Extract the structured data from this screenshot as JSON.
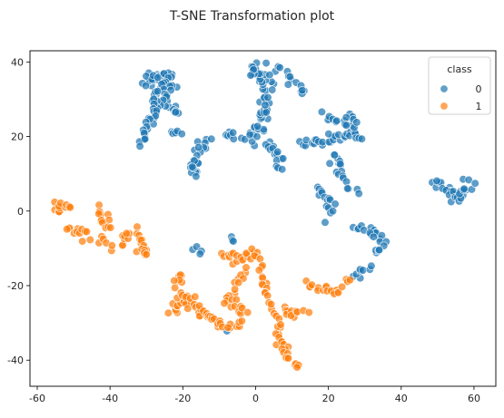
{
  "chart_data": {
    "type": "scatter",
    "title": "T-SNE Transformation plot",
    "xlabel": "",
    "ylabel": "",
    "xlim": [
      -62,
      66
    ],
    "ylim": [
      -47,
      43
    ],
    "x_ticks": [
      -60,
      -40,
      -20,
      0,
      20,
      40,
      60
    ],
    "y_ticks": [
      -40,
      -20,
      0,
      20,
      40
    ],
    "grid": false,
    "legend": {
      "title": "class",
      "placement": "top-right",
      "entries": [
        {
          "label": "0",
          "color": "#1f77b4"
        },
        {
          "label": "1",
          "color": "#ff7f0e"
        }
      ]
    },
    "series": [
      {
        "name": "0",
        "color": "#1f77b4",
        "clusters": [
          {
            "path": [
              [
                -30,
                34
              ],
              [
                -28,
                36
              ],
              [
                -25,
                36
              ],
              [
                -24,
                33
              ],
              [
                -25,
                30
              ],
              [
                -27,
                29
              ]
            ],
            "n": 60,
            "spread": 1.6
          },
          {
            "path": [
              [
                -27,
                28
              ],
              [
                -28,
                25
              ],
              [
                -30,
                22
              ],
              [
                -30,
                18
              ]
            ],
            "n": 22,
            "spread": 1.1
          },
          {
            "path": [
              [
                -22,
                28
              ],
              [
                -22,
                26
              ]
            ],
            "n": 6,
            "spread": 0.8
          },
          {
            "path": [
              [
                -23,
                21
              ],
              [
                -21,
                21
              ]
            ],
            "n": 6,
            "spread": 0.6
          },
          {
            "path": [
              [
                -14,
                19
              ],
              [
                -15,
                16
              ],
              [
                -17,
                12
              ],
              [
                -16,
                10
              ]
            ],
            "n": 22,
            "spread": 1.3
          },
          {
            "path": [
              [
                -8,
                21
              ],
              [
                -6,
                20
              ]
            ],
            "n": 6,
            "spread": 0.7
          },
          {
            "path": [
              [
                -2,
                19
              ],
              [
                0,
                21
              ],
              [
                2,
                24
              ],
              [
                3,
                28
              ],
              [
                4,
                32
              ],
              [
                2,
                35
              ],
              [
                0,
                38
              ],
              [
                -1,
                36
              ]
            ],
            "n": 55,
            "spread": 1.2
          },
          {
            "path": [
              [
                3,
                38
              ],
              [
                7,
                38
              ],
              [
                10,
                35
              ],
              [
                12,
                33
              ],
              [
                13,
                32
              ]
            ],
            "n": 16,
            "spread": 1.0
          },
          {
            "path": [
              [
                3,
                19
              ],
              [
                4,
                16
              ],
              [
                6,
                14
              ],
              [
                7,
                12
              ]
            ],
            "n": 16,
            "spread": 1.0
          },
          {
            "path": [
              [
                12,
                18
              ],
              [
                16,
                18
              ],
              [
                20,
                19
              ],
              [
                23,
                20
              ],
              [
                26,
                21
              ],
              [
                30,
                20
              ]
            ],
            "n": 30,
            "spread": 1.0
          },
          {
            "path": [
              [
                20,
                26
              ],
              [
                23,
                25
              ],
              [
                25,
                24
              ],
              [
                27,
                23
              ]
            ],
            "n": 18,
            "spread": 1.2
          },
          {
            "path": [
              [
                21,
                16
              ],
              [
                22,
                13
              ],
              [
                23,
                11
              ],
              [
                25,
                8
              ],
              [
                27,
                5
              ]
            ],
            "n": 18,
            "spread": 1.1
          },
          {
            "path": [
              [
                17,
                6
              ],
              [
                19,
                4
              ],
              [
                20,
                2
              ],
              [
                21,
                0
              ]
            ],
            "n": 14,
            "spread": 1.0
          },
          {
            "path": [
              [
                28,
                -4
              ],
              [
                29,
                -5
              ]
            ],
            "n": 5,
            "spread": 0.8
          },
          {
            "path": [
              [
                31,
                -5
              ],
              [
                33,
                -7
              ],
              [
                35,
                -9
              ],
              [
                34,
                -11
              ]
            ],
            "n": 16,
            "spread": 1.2
          },
          {
            "path": [
              [
                27,
                -18
              ],
              [
                29,
                -16
              ],
              [
                32,
                -15
              ]
            ],
            "n": 8,
            "spread": 0.9
          },
          {
            "path": [
              [
                49,
                7
              ],
              [
                52,
                6
              ],
              [
                55,
                4
              ],
              [
                57,
                5
              ],
              [
                58,
                8
              ]
            ],
            "n": 30,
            "spread": 1.3
          },
          {
            "path": [
              [
                -17,
                -10
              ],
              [
                -15,
                -11
              ]
            ],
            "n": 4,
            "spread": 0.5
          },
          {
            "path": [
              [
                -7,
                -7
              ],
              [
                -6,
                -8
              ]
            ],
            "n": 3,
            "spread": 0.4
          },
          {
            "path": [
              [
                19,
                -3
              ],
              [
                19,
                -3
              ]
            ],
            "n": 1,
            "spread": 0.2
          },
          {
            "path": [
              [
                -8,
                -32
              ],
              [
                -8,
                -32
              ]
            ],
            "n": 1,
            "spread": 0.2
          }
        ]
      },
      {
        "name": "1",
        "color": "#ff7f0e",
        "clusters": [
          {
            "path": [
              [
                -55,
                2
              ],
              [
                -54,
                0
              ],
              [
                -53,
                2
              ],
              [
                -51,
                1
              ]
            ],
            "n": 14,
            "spread": 0.9
          },
          {
            "path": [
              [
                -51,
                -4
              ],
              [
                -49,
                -6
              ],
              [
                -47,
                -5
              ],
              [
                -46,
                -8
              ]
            ],
            "n": 12,
            "spread": 0.9
          },
          {
            "path": [
              [
                -43,
                0
              ],
              [
                -42,
                -2
              ],
              [
                -41,
                -4
              ]
            ],
            "n": 12,
            "spread": 0.9
          },
          {
            "path": [
              [
                -43,
                -8
              ],
              [
                -40,
                -9
              ],
              [
                -37,
                -8
              ],
              [
                -35,
                -7
              ]
            ],
            "n": 12,
            "spread": 1.0
          },
          {
            "path": [
              [
                -34,
                -5
              ],
              [
                -32,
                -7
              ],
              [
                -31,
                -10
              ],
              [
                -30,
                -12
              ]
            ],
            "n": 18,
            "spread": 1.1
          },
          {
            "path": [
              [
                -23,
                -27
              ],
              [
                -21,
                -25
              ],
              [
                -19,
                -23
              ],
              [
                -17,
                -25
              ],
              [
                -15,
                -27
              ],
              [
                -12,
                -29
              ],
              [
                -9,
                -30
              ]
            ],
            "n": 40,
            "spread": 1.2
          },
          {
            "path": [
              [
                -21,
                -19
              ],
              [
                -20,
                -17
              ],
              [
                -22,
                -21
              ]
            ],
            "n": 8,
            "spread": 0.9
          },
          {
            "path": [
              [
                -9,
                -12
              ],
              [
                -6,
                -13
              ],
              [
                -3,
                -12
              ],
              [
                -1,
                -11
              ]
            ],
            "n": 18,
            "spread": 1.0
          },
          {
            "path": [
              [
                -3,
                -15
              ],
              [
                -5,
                -20
              ],
              [
                -8,
                -23
              ],
              [
                -5,
                -25
              ],
              [
                -4,
                -27
              ]
            ],
            "n": 22,
            "spread": 1.1
          },
          {
            "path": [
              [
                0,
                -11
              ],
              [
                1,
                -15
              ],
              [
                2,
                -19
              ],
              [
                3,
                -23
              ],
              [
                5,
                -28
              ],
              [
                6,
                -32
              ],
              [
                7,
                -35
              ]
            ],
            "n": 30,
            "spread": 1.1
          },
          {
            "path": [
              [
                -9,
                -30
              ],
              [
                -6,
                -31
              ],
              [
                -4,
                -30
              ]
            ],
            "n": 8,
            "spread": 0.8
          },
          {
            "path": [
              [
                7,
                -35
              ],
              [
                8,
                -38
              ],
              [
                10,
                -40
              ],
              [
                12,
                -42
              ]
            ],
            "n": 16,
            "spread": 1.0
          },
          {
            "path": [
              [
                8,
                -26
              ],
              [
                10,
                -28
              ],
              [
                13,
                -27
              ]
            ],
            "n": 12,
            "spread": 0.9
          },
          {
            "path": [
              [
                14,
                -20
              ],
              [
                17,
                -20
              ],
              [
                20,
                -21
              ],
              [
                22,
                -22
              ],
              [
                23,
                -21
              ]
            ],
            "n": 18,
            "spread": 0.9
          },
          {
            "path": [
              [
                25,
                -19
              ],
              [
                26,
                -19
              ]
            ],
            "n": 3,
            "spread": 0.5
          }
        ]
      }
    ]
  }
}
